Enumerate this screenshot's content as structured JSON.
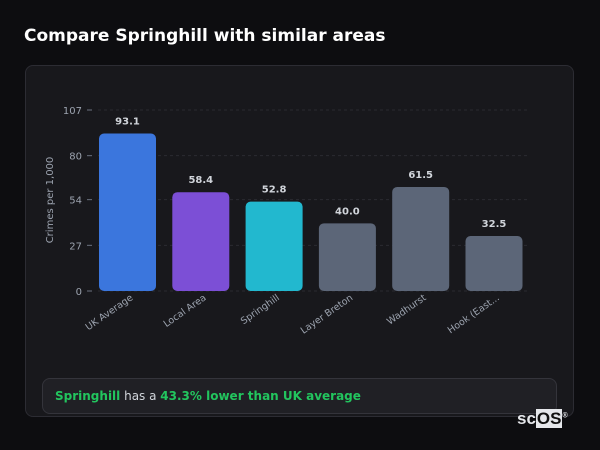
{
  "header": {
    "title": "Compare Springhill with similar areas"
  },
  "chart_data": {
    "type": "bar",
    "categories": [
      "UK Average",
      "Local Area",
      "Springhill",
      "Layer Breton",
      "Wadhurst",
      "Hook (East..."
    ],
    "values": [
      93.1,
      58.4,
      52.8,
      40.0,
      61.5,
      32.5
    ],
    "data_labels": [
      "93.1",
      "58.4",
      "52.8",
      "40.0",
      "61.5",
      "32.5"
    ],
    "colors": [
      "#3b76dd",
      "#7c4fd6",
      "#22b8cf",
      "#5c6678",
      "#5c6678",
      "#5c6678"
    ],
    "ylabel": "Crimes per 1,000",
    "yticks": [
      0,
      27,
      54,
      80,
      107
    ],
    "ylim": [
      0,
      107
    ],
    "grid": true
  },
  "summary": {
    "area": "Springhill",
    "middle": " has a ",
    "highlight": "43.3% lower than UK average"
  },
  "logo": {
    "text_a": "sc",
    "text_b": "OS",
    "mark": "®"
  }
}
